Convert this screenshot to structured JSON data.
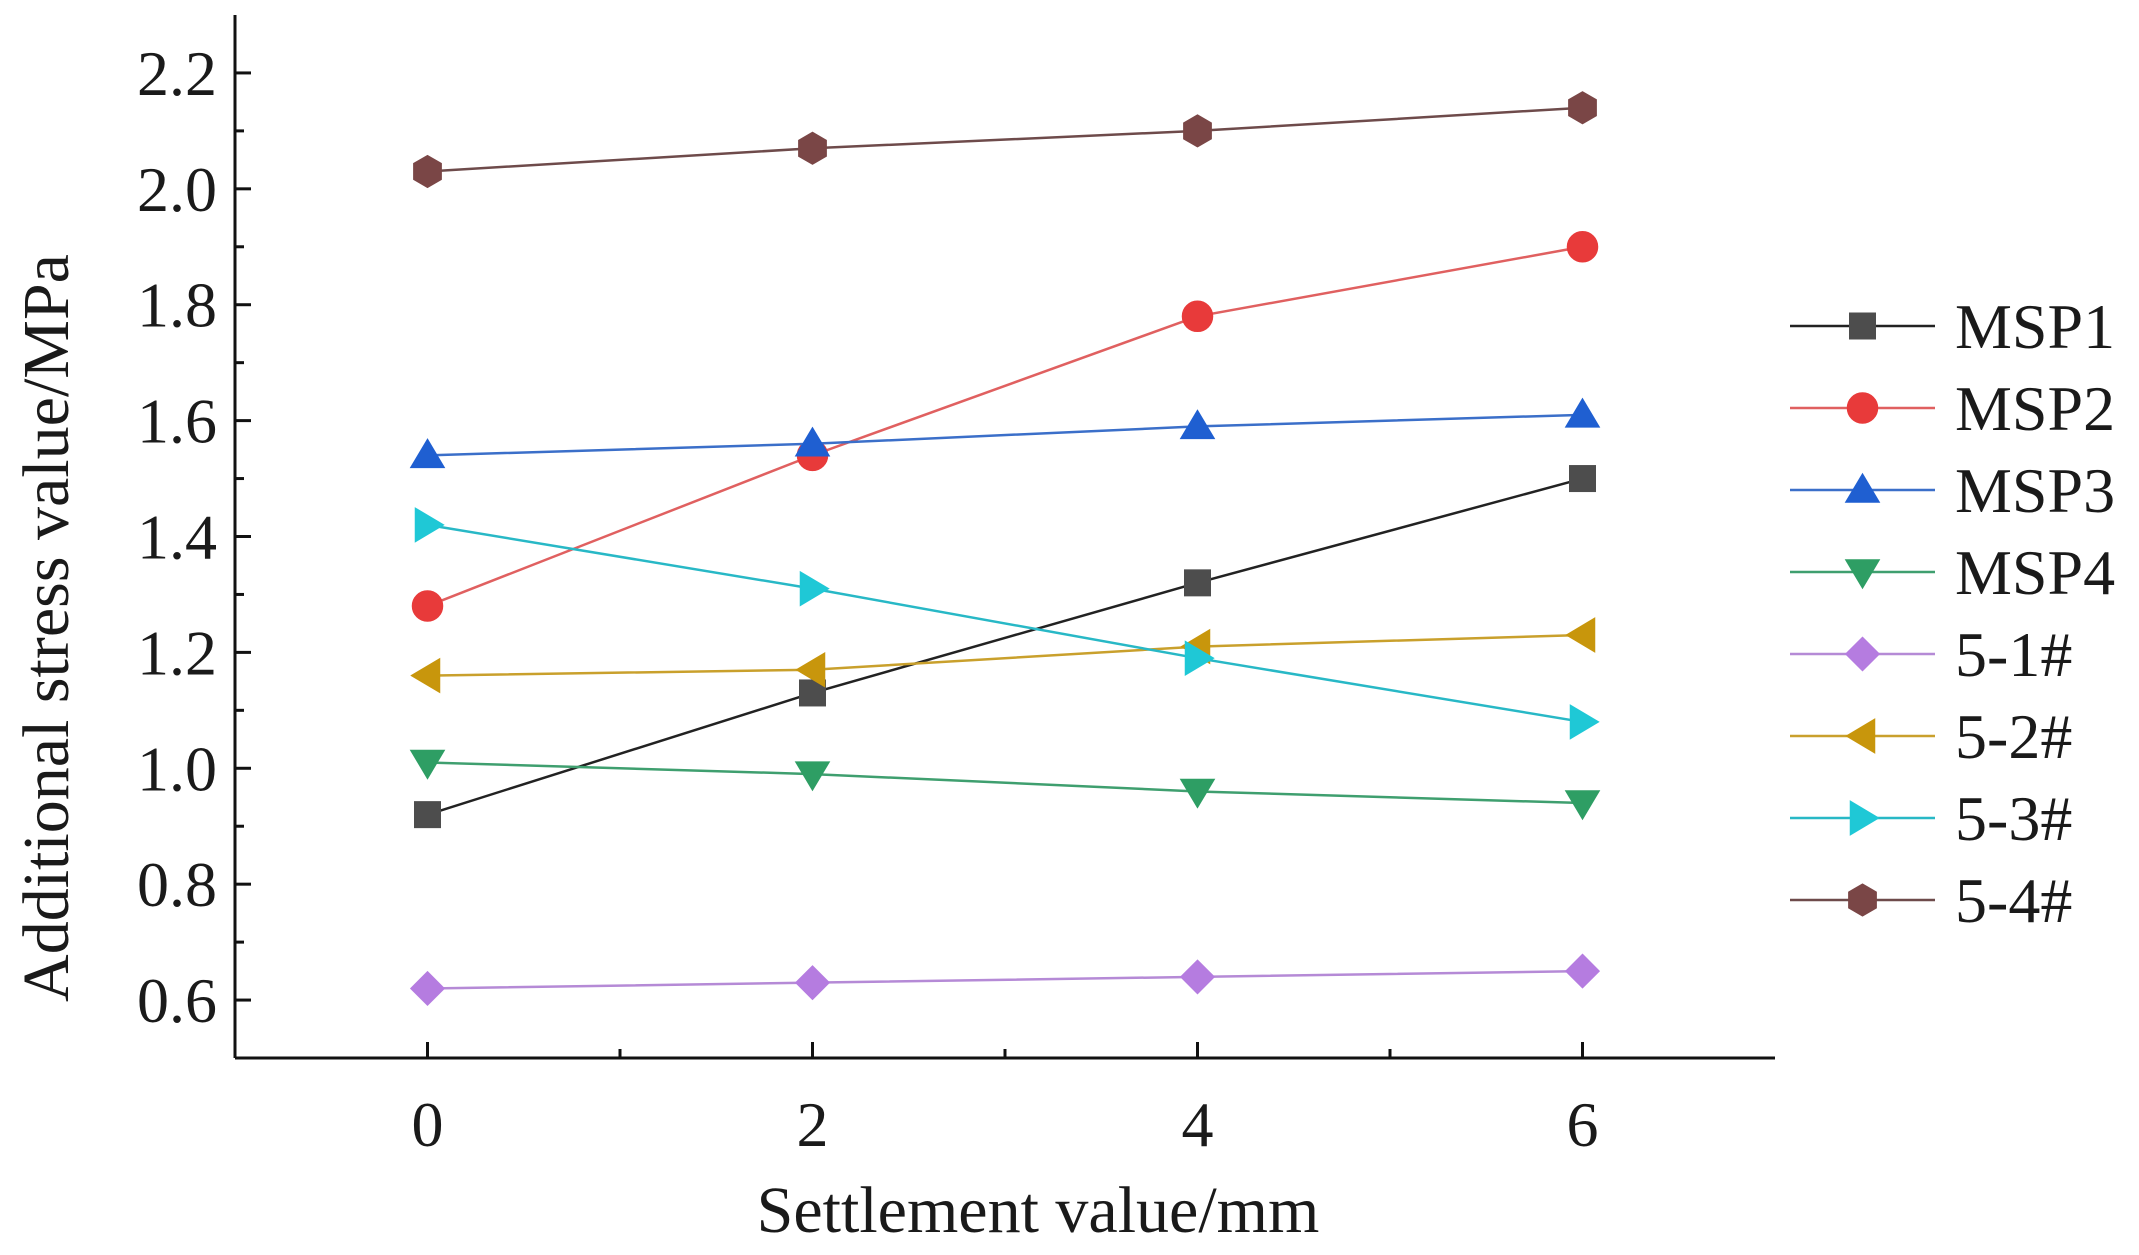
{
  "chart_data": {
    "type": "line",
    "title": "",
    "xlabel": "Settlement value/mm",
    "ylabel": "Additional stress value/MPa",
    "x": [
      0,
      2,
      4,
      6
    ],
    "xlim": [
      -1,
      7
    ],
    "ylim": [
      0.5,
      2.3
    ],
    "xticks": [
      "0",
      "2",
      "4",
      "6"
    ],
    "yticks": [
      "0.6",
      "0.8",
      "1.0",
      "1.2",
      "1.4",
      "1.6",
      "1.8",
      "2.0",
      "2.2"
    ],
    "ytick_values": [
      0.6,
      0.8,
      1.0,
      1.2,
      1.4,
      1.6,
      1.8,
      2.0,
      2.2
    ],
    "grid": false,
    "legend_position": "right",
    "series": [
      {
        "name": "MSP1",
        "marker": "square",
        "color": "#4d4d4d",
        "line_color": "#222222",
        "values": [
          0.92,
          1.13,
          1.32,
          1.5
        ]
      },
      {
        "name": "MSP2",
        "marker": "circle",
        "color": "#e83a3a",
        "line_color": "#e06060",
        "values": [
          1.28,
          1.54,
          1.78,
          1.9
        ]
      },
      {
        "name": "MSP3",
        "marker": "triangle-up",
        "color": "#1f5fd1",
        "line_color": "#3b6fc9",
        "values": [
          1.54,
          1.56,
          1.59,
          1.61
        ]
      },
      {
        "name": "MSP4",
        "marker": "triangle-down",
        "color": "#2e9e64",
        "line_color": "#3f9f6f",
        "values": [
          1.01,
          0.99,
          0.96,
          0.94
        ]
      },
      {
        "name": "5-1#",
        "marker": "diamond",
        "color": "#b57ce0",
        "line_color": "#b58ad6",
        "values": [
          0.62,
          0.63,
          0.64,
          0.65
        ]
      },
      {
        "name": "5-2#",
        "marker": "triangle-left",
        "color": "#c8960c",
        "line_color": "#c9a02c",
        "values": [
          1.16,
          1.17,
          1.21,
          1.23
        ]
      },
      {
        "name": "5-3#",
        "marker": "triangle-right",
        "color": "#1fc8d6",
        "line_color": "#28b8c6",
        "values": [
          1.42,
          1.31,
          1.19,
          1.08
        ]
      },
      {
        "name": "5-4#",
        "marker": "hexagon",
        "color": "#7a4646",
        "line_color": "#6e4b4b",
        "values": [
          2.03,
          2.07,
          2.1,
          2.14
        ]
      }
    ]
  }
}
